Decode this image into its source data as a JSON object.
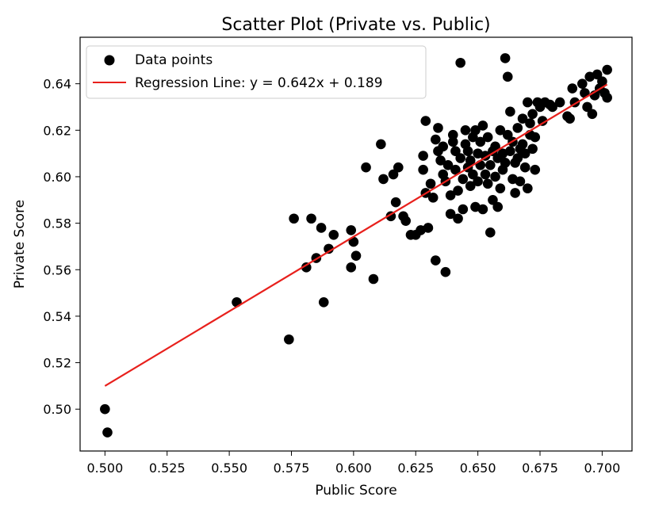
{
  "chart_data": {
    "type": "scatter",
    "title": "Scatter Plot (Private vs. Public)",
    "xlabel": "Public Score",
    "ylabel": "Private Score",
    "xlim": [
      0.49,
      0.712
    ],
    "ylim": [
      0.482,
      0.66
    ],
    "xticks": [
      0.5,
      0.525,
      0.55,
      0.575,
      0.6,
      0.625,
      0.65,
      0.675,
      0.7
    ],
    "xtick_labels": [
      "0.500",
      "0.525",
      "0.550",
      "0.575",
      "0.600",
      "0.625",
      "0.650",
      "0.675",
      "0.700"
    ],
    "yticks": [
      0.5,
      0.52,
      0.54,
      0.56,
      0.58,
      0.6,
      0.62,
      0.64
    ],
    "ytick_labels": [
      "0.50",
      "0.52",
      "0.54",
      "0.56",
      "0.58",
      "0.60",
      "0.62",
      "0.64"
    ],
    "grid": false,
    "legend": {
      "position": "top-left",
      "entries": [
        "Data points",
        "Regression Line: y = 0.642x + 0.189"
      ]
    },
    "colors": {
      "points": "#000000",
      "line": "#e8201c"
    },
    "series": [
      {
        "name": "Data points",
        "kind": "scatter",
        "points": [
          [
            0.5,
            0.5
          ],
          [
            0.501,
            0.49
          ],
          [
            0.553,
            0.546
          ],
          [
            0.574,
            0.53
          ],
          [
            0.576,
            0.582
          ],
          [
            0.581,
            0.561
          ],
          [
            0.583,
            0.582
          ],
          [
            0.585,
            0.565
          ],
          [
            0.587,
            0.578
          ],
          [
            0.588,
            0.546
          ],
          [
            0.59,
            0.569
          ],
          [
            0.592,
            0.575
          ],
          [
            0.599,
            0.561
          ],
          [
            0.599,
            0.577
          ],
          [
            0.6,
            0.572
          ],
          [
            0.601,
            0.566
          ],
          [
            0.605,
            0.604
          ],
          [
            0.608,
            0.556
          ],
          [
            0.611,
            0.614
          ],
          [
            0.612,
            0.599
          ],
          [
            0.615,
            0.583
          ],
          [
            0.616,
            0.601
          ],
          [
            0.617,
            0.589
          ],
          [
            0.618,
            0.604
          ],
          [
            0.62,
            0.583
          ],
          [
            0.621,
            0.581
          ],
          [
            0.623,
            0.575
          ],
          [
            0.625,
            0.575
          ],
          [
            0.627,
            0.577
          ],
          [
            0.628,
            0.603
          ],
          [
            0.628,
            0.609
          ],
          [
            0.629,
            0.624
          ],
          [
            0.629,
            0.593
          ],
          [
            0.63,
            0.578
          ],
          [
            0.631,
            0.597
          ],
          [
            0.632,
            0.591
          ],
          [
            0.633,
            0.564
          ],
          [
            0.633,
            0.616
          ],
          [
            0.634,
            0.611
          ],
          [
            0.634,
            0.621
          ],
          [
            0.635,
            0.607
          ],
          [
            0.636,
            0.601
          ],
          [
            0.636,
            0.613
          ],
          [
            0.637,
            0.598
          ],
          [
            0.637,
            0.559
          ],
          [
            0.638,
            0.605
          ],
          [
            0.639,
            0.592
          ],
          [
            0.639,
            0.584
          ],
          [
            0.64,
            0.615
          ],
          [
            0.64,
            0.618
          ],
          [
            0.641,
            0.603
          ],
          [
            0.641,
            0.611
          ],
          [
            0.642,
            0.582
          ],
          [
            0.642,
            0.594
          ],
          [
            0.643,
            0.649
          ],
          [
            0.643,
            0.608
          ],
          [
            0.644,
            0.586
          ],
          [
            0.644,
            0.599
          ],
          [
            0.645,
            0.614
          ],
          [
            0.645,
            0.62
          ],
          [
            0.646,
            0.604
          ],
          [
            0.646,
            0.611
          ],
          [
            0.647,
            0.596
          ],
          [
            0.647,
            0.607
          ],
          [
            0.648,
            0.617
          ],
          [
            0.648,
            0.601
          ],
          [
            0.649,
            0.587
          ],
          [
            0.649,
            0.62
          ],
          [
            0.65,
            0.61
          ],
          [
            0.65,
            0.598
          ],
          [
            0.651,
            0.605
          ],
          [
            0.651,
            0.615
          ],
          [
            0.652,
            0.586
          ],
          [
            0.652,
            0.622
          ],
          [
            0.653,
            0.601
          ],
          [
            0.653,
            0.609
          ],
          [
            0.654,
            0.597
          ],
          [
            0.654,
            0.617
          ],
          [
            0.655,
            0.576
          ],
          [
            0.655,
            0.605
          ],
          [
            0.656,
            0.611
          ],
          [
            0.656,
            0.59
          ],
          [
            0.657,
            0.613
          ],
          [
            0.657,
            0.6
          ],
          [
            0.658,
            0.587
          ],
          [
            0.658,
            0.608
          ],
          [
            0.659,
            0.62
          ],
          [
            0.659,
            0.595
          ],
          [
            0.66,
            0.61
          ],
          [
            0.66,
            0.603
          ],
          [
            0.661,
            0.651
          ],
          [
            0.661,
            0.606
          ],
          [
            0.662,
            0.618
          ],
          [
            0.662,
            0.643
          ],
          [
            0.663,
            0.628
          ],
          [
            0.663,
            0.611
          ],
          [
            0.664,
            0.599
          ],
          [
            0.664,
            0.615
          ],
          [
            0.665,
            0.606
          ],
          [
            0.665,
            0.593
          ],
          [
            0.666,
            0.621
          ],
          [
            0.666,
            0.608
          ],
          [
            0.667,
            0.612
          ],
          [
            0.667,
            0.598
          ],
          [
            0.668,
            0.625
          ],
          [
            0.668,
            0.614
          ],
          [
            0.669,
            0.604
          ],
          [
            0.669,
            0.61
          ],
          [
            0.67,
            0.632
          ],
          [
            0.67,
            0.595
          ],
          [
            0.671,
            0.623
          ],
          [
            0.671,
            0.618
          ],
          [
            0.672,
            0.627
          ],
          [
            0.672,
            0.612
          ],
          [
            0.673,
            0.603
          ],
          [
            0.673,
            0.617
          ],
          [
            0.674,
            0.632
          ],
          [
            0.675,
            0.63
          ],
          [
            0.676,
            0.624
          ],
          [
            0.677,
            0.632
          ],
          [
            0.679,
            0.631
          ],
          [
            0.68,
            0.63
          ],
          [
            0.683,
            0.632
          ],
          [
            0.686,
            0.626
          ],
          [
            0.687,
            0.625
          ],
          [
            0.688,
            0.638
          ],
          [
            0.689,
            0.632
          ],
          [
            0.692,
            0.64
          ],
          [
            0.693,
            0.636
          ],
          [
            0.694,
            0.63
          ],
          [
            0.695,
            0.643
          ],
          [
            0.696,
            0.627
          ],
          [
            0.697,
            0.635
          ],
          [
            0.698,
            0.644
          ],
          [
            0.699,
            0.638
          ],
          [
            0.7,
            0.641
          ],
          [
            0.701,
            0.636
          ],
          [
            0.702,
            0.646
          ],
          [
            0.702,
            0.634
          ]
        ]
      },
      {
        "name": "Regression Line: y = 0.642x + 0.189",
        "kind": "line",
        "slope": 0.642,
        "intercept": 0.189,
        "x_range": [
          0.5,
          0.702
        ]
      }
    ]
  }
}
